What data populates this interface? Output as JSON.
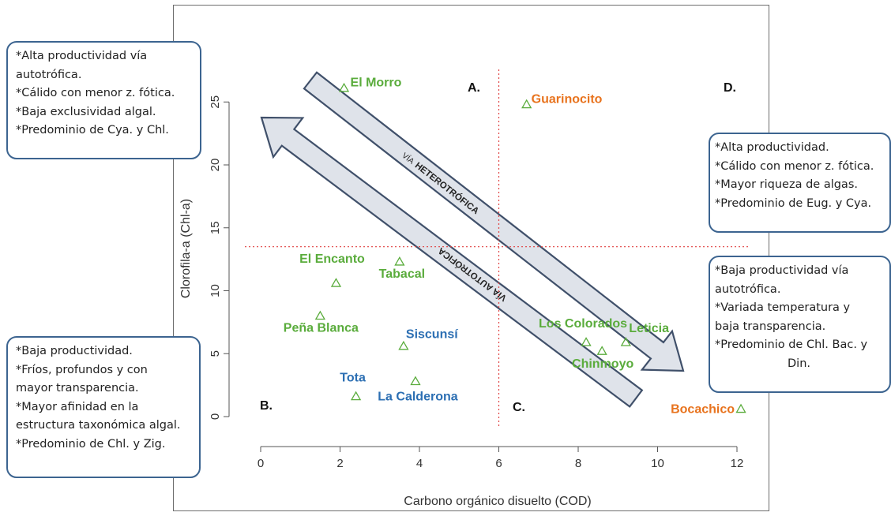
{
  "chart_data": {
    "type": "scatter",
    "xlabel": "Carbono orgánico disuelto (COD)",
    "ylabel": "Clorofila-a (Chl-a)",
    "xlim": [
      -0.6,
      12.6
    ],
    "ylim": [
      -1,
      27.5
    ],
    "x_ticks": [
      0,
      2,
      4,
      6,
      8,
      10,
      12
    ],
    "y_ticks": [
      0,
      5,
      10,
      15,
      20,
      25
    ],
    "grid": false,
    "reference_lines": {
      "x": 6,
      "y": 13.5,
      "color": "#e04040"
    },
    "marker": "open-triangle",
    "marker_color": "#5aac3c",
    "label_colors": {
      "green": "#5aac3c",
      "orange": "#e8731e",
      "blue": "#2c6fb3"
    },
    "points": [
      {
        "label": "El Morro",
        "x": 2.1,
        "y": 26.1,
        "color": "green"
      },
      {
        "label": "Guarinocito",
        "x": 6.7,
        "y": 24.8,
        "color": "orange"
      },
      {
        "label": "El Encanto",
        "x": 1.9,
        "y": 10.6,
        "color": "green"
      },
      {
        "label": "Tabacal",
        "x": 3.5,
        "y": 12.3,
        "color": "green"
      },
      {
        "label": "Peña Blanca",
        "x": 1.5,
        "y": 8.0,
        "color": "green"
      },
      {
        "label": "Siscunsí",
        "x": 3.6,
        "y": 5.6,
        "color": "blue"
      },
      {
        "label": "Tota",
        "x": 2.4,
        "y": 1.6,
        "color": "blue"
      },
      {
        "label": "La Calderona",
        "x": 3.9,
        "y": 2.8,
        "color": "blue"
      },
      {
        "label": "Los Colorados",
        "x": 8.2,
        "y": 5.9,
        "color": "green"
      },
      {
        "label": "Chinmoyo",
        "x": 8.6,
        "y": 5.2,
        "color": "green"
      },
      {
        "label": "Leticia",
        "x": 9.2,
        "y": 5.9,
        "color": "green"
      },
      {
        "label": "Bocachico",
        "x": 12.1,
        "y": 0.6,
        "color": "orange"
      }
    ],
    "quadrants": [
      "A.",
      "B.",
      "C.",
      "D."
    ],
    "arrows": [
      {
        "small": "VÍA",
        "big": "HETEROTRÓFICA"
      },
      {
        "small": "",
        "big": "VÍA AUTOTRÓFICA"
      }
    ]
  },
  "notes": {
    "top_left": [
      "*Alta productividad vía",
      "autotrófica.",
      "*Cálido con menor z. fótica.",
      "*Baja exclusividad algal.",
      "*Predominio de Cya. y Chl."
    ],
    "bottom_left": [
      "*Baja productividad.",
      "*Fríos, profundos y con",
      "mayor transparencia.",
      "*Mayor afinidad en la",
      "estructura taxonómica algal.",
      "*Predominio de Chl. y Zig."
    ],
    "top_right": [
      "*Alta productividad.",
      "*Cálido con menor z. fótica.",
      "*Mayor riqueza de algas.",
      "*Predominio de Eug. y Cya."
    ],
    "bottom_right": [
      "*Baja productividad vía",
      "autotrófica.",
      "*Variada temperatura y",
      "baja transparencia.",
      "*Predominio de Chl. Bac. y",
      "Din."
    ]
  }
}
